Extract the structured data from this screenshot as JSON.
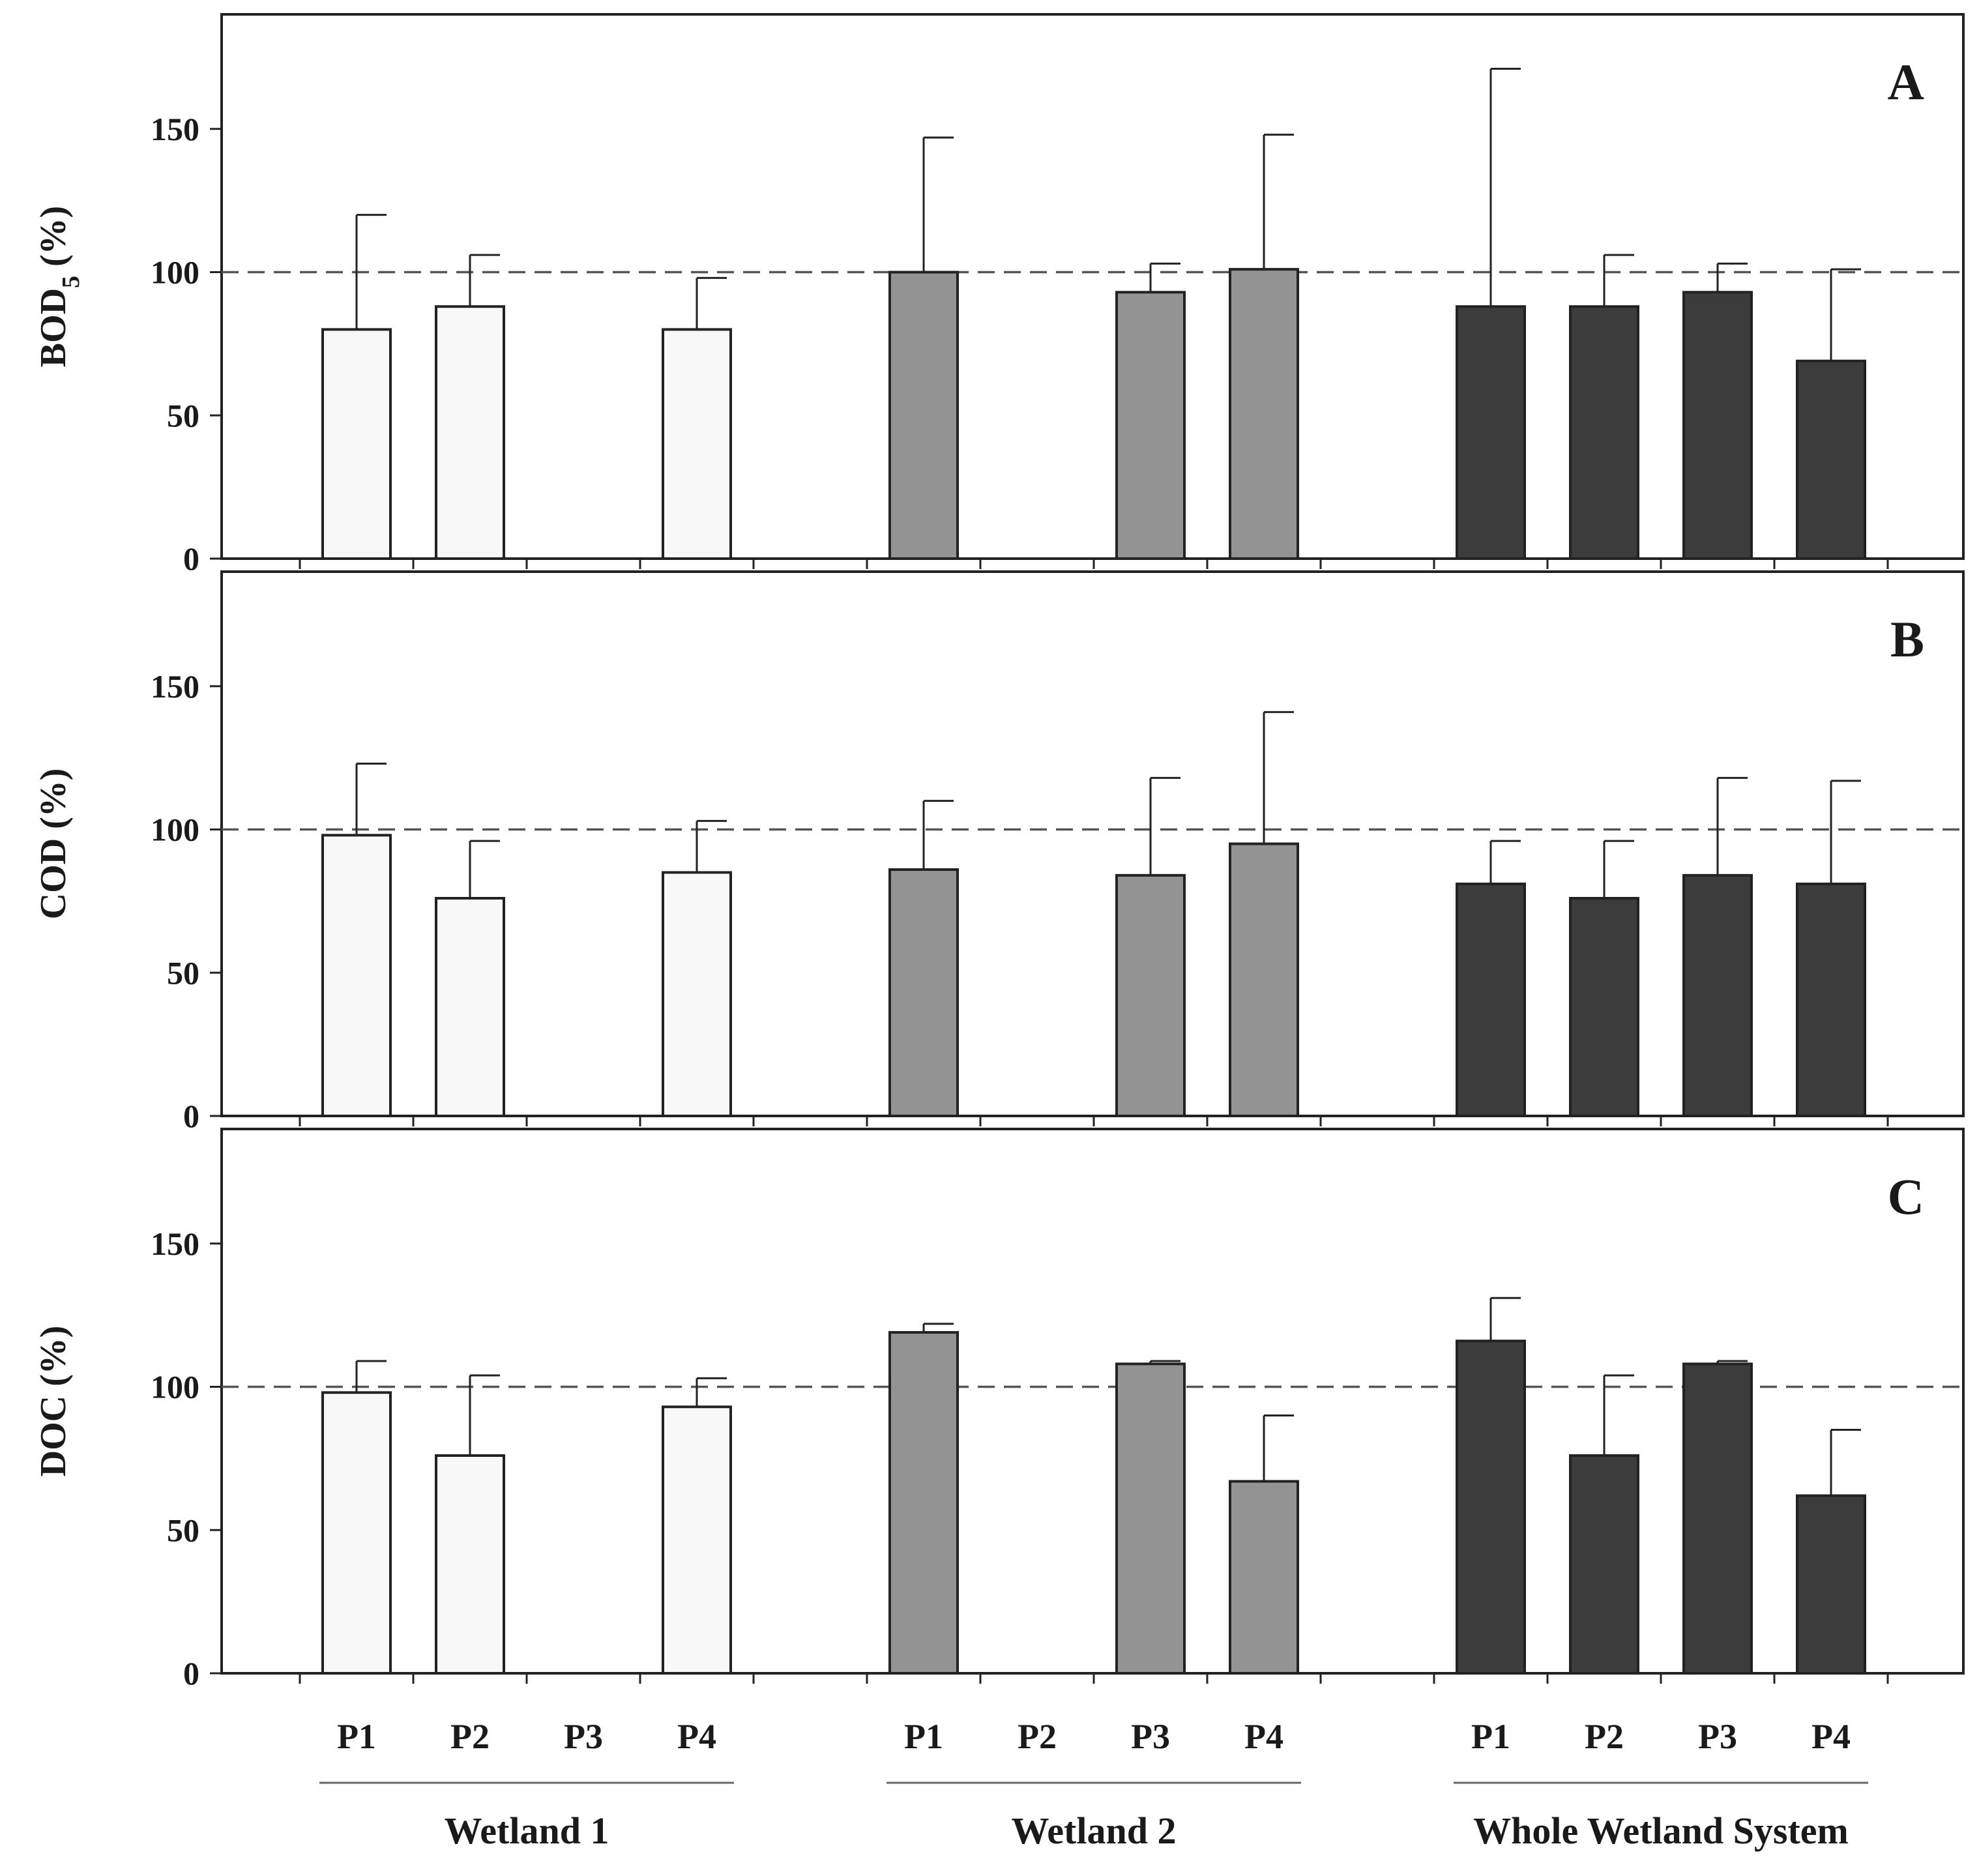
{
  "chart_data": [
    {
      "type": "bar",
      "panel": "A",
      "ylabel": "BOD5 (%)",
      "ylabel_main": "BOD",
      "ylabel_sub": "5",
      "ylabel_rest": " (%)",
      "ylim": [
        0,
        190
      ],
      "yticks": [
        "0",
        "50",
        "100",
        "150"
      ],
      "reference_line": 100,
      "groups": [
        "Wetland 1",
        "Wetland 2",
        "Whole Wetland System"
      ],
      "categories": [
        "P1",
        "P2",
        "P3",
        "P4"
      ],
      "series": [
        {
          "name": "Wetland 1",
          "values": [
            80,
            88,
            null,
            80
          ],
          "errors": [
            40,
            18,
            null,
            18
          ]
        },
        {
          "name": "Wetland 2",
          "values": [
            100,
            null,
            93,
            101
          ],
          "errors": [
            47,
            null,
            10,
            47
          ]
        },
        {
          "name": "Whole Wetland System",
          "values": [
            88,
            88,
            93,
            69
          ],
          "errors": [
            83,
            18,
            10,
            32
          ]
        }
      ]
    },
    {
      "type": "bar",
      "panel": "B",
      "ylabel": "COD (%)",
      "ylabel_main": "COD (%)",
      "ylabel_sub": "",
      "ylabel_rest": "",
      "ylim": [
        0,
        190
      ],
      "yticks": [
        "0",
        "50",
        "100",
        "150"
      ],
      "reference_line": 100,
      "groups": [
        "Wetland 1",
        "Wetland 2",
        "Whole Wetland System"
      ],
      "categories": [
        "P1",
        "P2",
        "P3",
        "P4"
      ],
      "series": [
        {
          "name": "Wetland 1",
          "values": [
            98,
            76,
            null,
            85
          ],
          "errors": [
            25,
            20,
            null,
            18
          ]
        },
        {
          "name": "Wetland 2",
          "values": [
            86,
            null,
            84,
            95
          ],
          "errors": [
            24,
            null,
            34,
            46
          ]
        },
        {
          "name": "Whole Wetland System",
          "values": [
            81,
            76,
            84,
            81
          ],
          "errors": [
            15,
            20,
            34,
            36
          ]
        }
      ]
    },
    {
      "type": "bar",
      "panel": "C",
      "ylabel": "DOC (%)",
      "ylabel_main": "DOC (%)",
      "ylabel_sub": "",
      "ylabel_rest": "",
      "ylim": [
        0,
        190
      ],
      "yticks": [
        "0",
        "50",
        "100",
        "150"
      ],
      "reference_line": 100,
      "groups": [
        "Wetland 1",
        "Wetland 2",
        "Whole Wetland System"
      ],
      "categories": [
        "P1",
        "P2",
        "P3",
        "P4"
      ],
      "series": [
        {
          "name": "Wetland 1",
          "values": [
            98,
            76,
            null,
            93
          ],
          "errors": [
            11,
            28,
            null,
            10
          ]
        },
        {
          "name": "Wetland 2",
          "values": [
            119,
            null,
            108,
            67
          ],
          "errors": [
            3,
            null,
            1,
            23
          ]
        },
        {
          "name": "Whole Wetland System",
          "values": [
            116,
            76,
            108,
            62
          ],
          "errors": [
            15,
            28,
            1,
            23
          ]
        }
      ]
    }
  ],
  "colors": {
    "wetland1": "#f8f8f8",
    "wetland2": "#939393",
    "whole": "#3c3c3c"
  }
}
